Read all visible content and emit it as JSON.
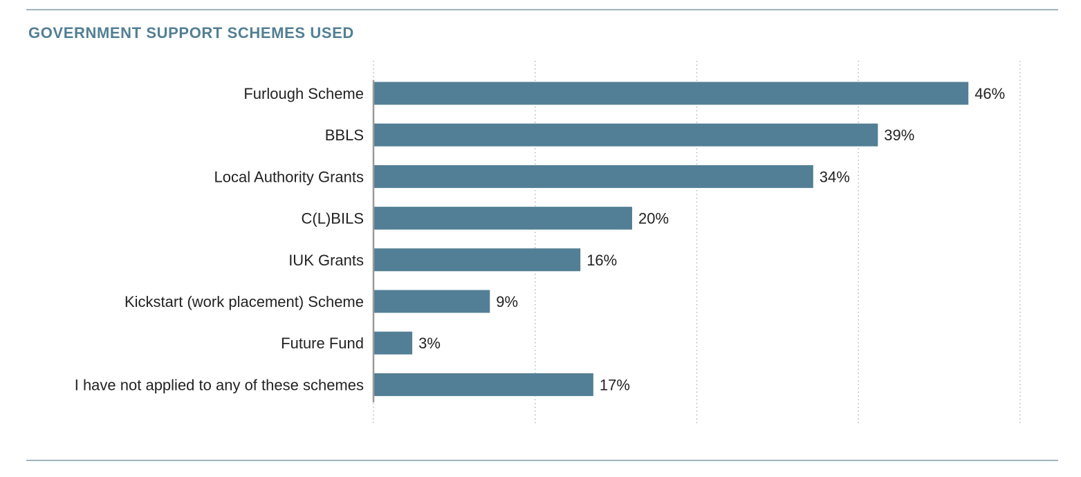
{
  "chart_data": {
    "type": "bar",
    "orientation": "horizontal",
    "title": "GOVERNMENT SUPPORT SCHEMES USED",
    "categories": [
      "Furlough Scheme",
      "BBLS",
      "Local Authority Grants",
      "C(L)BILS",
      "IUK Grants",
      "Kickstart (work placement) Scheme",
      "Future Fund",
      "I have not applied to any of these schemes"
    ],
    "values": [
      46,
      39,
      34,
      20,
      16,
      9,
      3,
      17
    ],
    "value_labels": [
      "46%",
      "39%",
      "34%",
      "20%",
      "16%",
      "9%",
      "3%",
      "17%"
    ],
    "unit": "%",
    "xlim": [
      0,
      50
    ],
    "gridlines": [
      0,
      12.5,
      25,
      37.5,
      50
    ],
    "grid": true,
    "grid_style": "dotted vertical",
    "tick_labels_shown": false,
    "legend": "none",
    "bar_color": "#527f95",
    "title_color": "#527f95"
  }
}
